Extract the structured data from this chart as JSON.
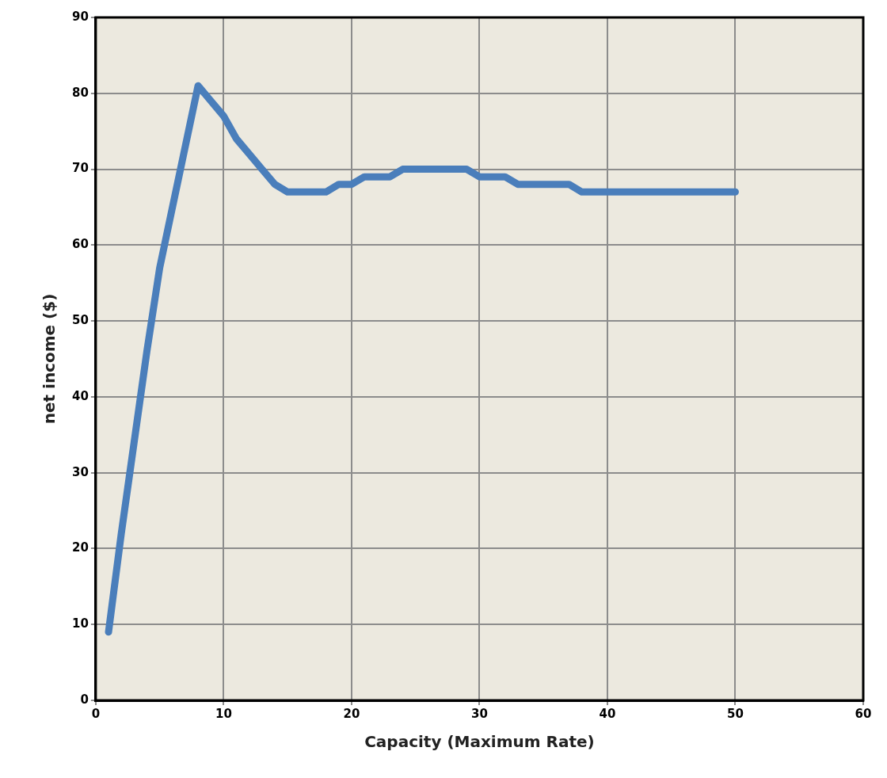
{
  "chart_data": {
    "type": "line",
    "xlabel": "Capacity (Maximum Rate)",
    "ylabel": "net income ($)",
    "x": [
      1,
      2,
      3,
      4,
      5,
      6,
      7,
      8,
      9,
      10,
      11,
      12,
      13,
      14,
      15,
      16,
      17,
      18,
      19,
      20,
      21,
      22,
      23,
      24,
      25,
      26,
      27,
      28,
      29,
      30,
      31,
      32,
      33,
      34,
      35,
      36,
      37,
      38,
      39,
      40,
      41,
      42,
      43,
      44,
      45,
      46,
      47,
      48,
      49,
      50
    ],
    "series": [
      {
        "color": "#4a7ebb",
        "values": [
          9,
          22,
          34,
          46,
          57,
          65,
          73,
          81,
          79,
          77,
          74,
          72,
          70,
          68,
          67,
          67,
          67,
          67,
          68,
          68,
          69,
          69,
          69,
          70,
          70,
          70,
          70,
          70,
          70,
          69,
          69,
          69,
          68,
          68,
          68,
          68,
          68,
          67,
          67,
          67,
          67,
          67,
          67,
          67,
          67,
          67,
          67,
          67,
          67,
          67
        ]
      }
    ],
    "xlim": [
      0,
      60
    ],
    "xticks": [
      0,
      10,
      20,
      30,
      40,
      50,
      60
    ],
    "ylim": [
      0,
      90
    ],
    "yticks": [
      0,
      10,
      20,
      30,
      40,
      50,
      60,
      70,
      80,
      90
    ],
    "grid": true,
    "legend": false,
    "marker": "none",
    "line_style": "solid"
  }
}
